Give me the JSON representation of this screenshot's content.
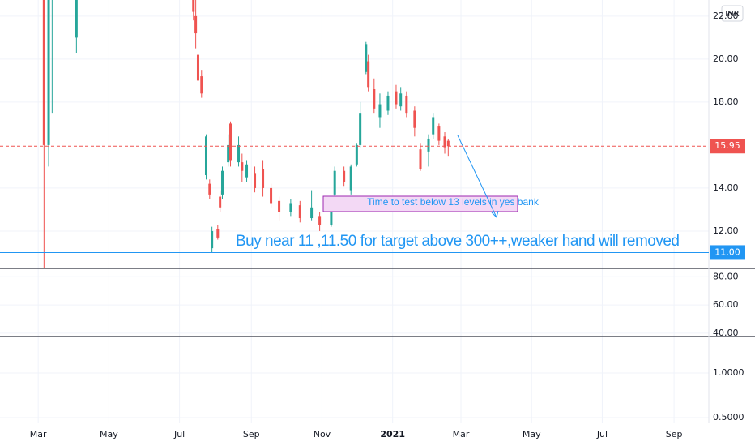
{
  "chart_data": {
    "type": "candlestick",
    "currency": "INR",
    "up_color": "#26a69a",
    "down_color": "#ef5350",
    "grid": true,
    "xlim": [
      "2020-01-28",
      "2021-10-01"
    ],
    "xticks": [
      {
        "value": "2020-03-01",
        "label": "Mar"
      },
      {
        "value": "2020-05-01",
        "label": "May"
      },
      {
        "value": "2020-07-01",
        "label": "Jul"
      },
      {
        "value": "2020-09-01",
        "label": "Sep"
      },
      {
        "value": "2020-11-01",
        "label": "Nov"
      },
      {
        "value": "2021-01-01",
        "label": "2021"
      },
      {
        "value": "2021-03-01",
        "label": "Mar"
      },
      {
        "value": "2021-05-01",
        "label": "May"
      },
      {
        "value": "2021-07-01",
        "label": "Jul"
      },
      {
        "value": "2021-09-01",
        "label": "Sep"
      }
    ],
    "ylim": [
      10.3,
      22.75
    ],
    "yticks": [
      {
        "value": 12,
        "label": "12.00"
      },
      {
        "value": 14,
        "label": "14.00"
      },
      {
        "value": 18,
        "label": "18.00"
      },
      {
        "value": 20,
        "label": "20.00"
      },
      {
        "value": 22,
        "label": "22.00"
      }
    ],
    "candles": {
      "x": [
        "2020-03-06",
        "2020-03-10",
        "2020-03-13",
        "2020-04-03",
        "2020-07-13",
        "2020-07-15",
        "2020-07-17",
        "2020-07-20",
        "2020-07-24",
        "2020-07-27",
        "2020-07-29",
        "2020-08-03",
        "2020-08-05",
        "2020-08-07",
        "2020-08-12",
        "2020-08-14",
        "2020-08-21",
        "2020-08-24",
        "2020-08-28",
        "2020-09-04",
        "2020-09-11",
        "2020-09-18",
        "2020-09-25",
        "2020-10-05",
        "2020-10-13",
        "2020-10-23",
        "2020-10-30",
        "2020-11-09",
        "2020-11-12",
        "2020-11-20",
        "2020-11-26",
        "2020-12-01",
        "2020-12-04",
        "2020-12-09",
        "2020-12-11",
        "2020-12-16",
        "2020-12-21",
        "2020-12-28",
        "2021-01-04",
        "2021-01-08",
        "2021-01-13",
        "2021-01-20",
        "2021-01-25",
        "2021-02-01",
        "2021-02-05",
        "2021-02-10",
        "2021-02-15",
        "2021-02-18"
      ],
      "open": [
        36,
        16,
        24,
        21,
        24,
        22,
        20.2,
        19.2,
        14.6,
        14.2,
        11.2,
        12.1,
        13.6,
        13.7,
        15.2,
        17.0,
        15.2,
        15.2,
        14.5,
        14.7,
        14.9,
        14.0,
        13.4,
        12.9,
        13.2,
        12.6,
        12.7,
        12.3,
        13.7,
        14.8,
        13.9,
        15.1,
        16.0,
        19.4,
        19.9,
        18.6,
        17.3,
        17.6,
        18.5,
        17.8,
        18.3,
        17.6,
        15.8,
        15.7,
        16.5,
        16.9,
        16.4,
        16.2
      ],
      "high": [
        40,
        26,
        60,
        27,
        26,
        23,
        20.8,
        19.5,
        16.5,
        14.4,
        12.2,
        12.3,
        13.9,
        15.0,
        16.5,
        17.1,
        16.4,
        15.6,
        15.3,
        15.0,
        15.3,
        14.2,
        13.6,
        13.5,
        13.4,
        13.9,
        12.9,
        13.4,
        15.0,
        15.0,
        15.1,
        16.1,
        18.0,
        20.8,
        20.2,
        19.1,
        18.4,
        18.5,
        18.8,
        18.7,
        18.5,
        17.8,
        16.1,
        16.5,
        17.5,
        17.0,
        16.6,
        16.3
      ],
      "low": [
        5.6,
        15,
        17.5,
        20.3,
        21.8,
        20.5,
        18.5,
        18.2,
        14.4,
        13.5,
        11.0,
        11.6,
        12.9,
        13.5,
        15.0,
        15.0,
        15.0,
        14.3,
        14.3,
        13.8,
        13.6,
        13.1,
        12.5,
        12.7,
        12.4,
        12.5,
        12.0,
        12.2,
        13.5,
        14.1,
        13.7,
        15.0,
        15.9,
        19.3,
        18.5,
        17.5,
        16.8,
        17.4,
        17.7,
        17.6,
        17.3,
        16.4,
        14.8,
        15.0,
        16.3,
        16.0,
        15.6,
        15.5
      ],
      "close": [
        16,
        24,
        50,
        23.5,
        22.2,
        21.2,
        19,
        18.4,
        16.4,
        13.7,
        12.0,
        11.7,
        13.1,
        14.8,
        16.0,
        15.3,
        16.0,
        14.8,
        15.1,
        14.0,
        14.0,
        13.3,
        12.9,
        13.3,
        12.6,
        13.1,
        12.3,
        13.2,
        14.8,
        14.3,
        15.0,
        16.0,
        17.5,
        20.7,
        18.7,
        17.7,
        17.9,
        18.3,
        17.9,
        18.4,
        17.5,
        16.8,
        14.9,
        16.3,
        17.3,
        16.2,
        15.9,
        15.95
      ]
    },
    "last_price": {
      "value": 15.95,
      "label": "15.95",
      "color": "#ef5350"
    },
    "horizontal_line": {
      "value": 11,
      "label": "11.00",
      "color": "#2196f3"
    },
    "annotations": [
      "Time to test below 13 levels in yes bank",
      "Buy near 11 ,11.50 for target above 300++,weaker hand will removed"
    ],
    "panes": [
      {
        "ylim": [
          38.2,
          85.9
        ],
        "yticks": [
          {
            "value": 80,
            "label": "80.00"
          },
          {
            "value": 60,
            "label": "60.00"
          },
          {
            "value": 40,
            "label": "40.00"
          }
        ]
      },
      {
        "ylim": [
          0.458,
          1.74
        ],
        "log": true,
        "yticks": [
          {
            "value": 1,
            "label": "1.0000"
          },
          {
            "value": 0.5,
            "label": "0.5000"
          }
        ]
      }
    ]
  }
}
